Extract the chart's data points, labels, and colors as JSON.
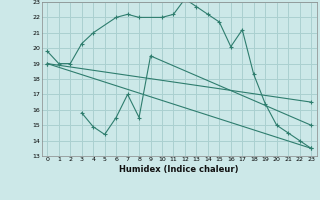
{
  "xlabel": "Humidex (Indice chaleur)",
  "background_color": "#cce8e8",
  "grid_color": "#aad0d0",
  "line_color": "#2e7d6e",
  "xlim": [
    -0.5,
    23.5
  ],
  "ylim": [
    13,
    23
  ],
  "yticks": [
    13,
    14,
    15,
    16,
    17,
    18,
    19,
    20,
    21,
    22,
    23
  ],
  "xticks": [
    0,
    1,
    2,
    3,
    4,
    5,
    6,
    7,
    8,
    9,
    10,
    11,
    12,
    13,
    14,
    15,
    16,
    17,
    18,
    19,
    20,
    21,
    22,
    23
  ],
  "line1_x": [
    0,
    1,
    2,
    3,
    4,
    6,
    7,
    8,
    10,
    11,
    12,
    13,
    14,
    15,
    16,
    17,
    18,
    19,
    20,
    21,
    22,
    23
  ],
  "line1_y": [
    19.8,
    19.0,
    19.0,
    20.3,
    21.0,
    22.0,
    22.2,
    22.0,
    22.0,
    22.2,
    23.2,
    22.7,
    22.2,
    21.7,
    20.1,
    21.2,
    18.3,
    16.4,
    15.0,
    14.5,
    14.0,
    13.5
  ],
  "line2_x": [
    0,
    23
  ],
  "line2_y": [
    19.0,
    16.5
  ],
  "line3_x": [
    3,
    4,
    5,
    6,
    7,
    8,
    9,
    23
  ],
  "line3_y": [
    15.8,
    14.9,
    14.4,
    15.5,
    17.0,
    15.5,
    19.5,
    15.0
  ],
  "line4_x": [
    0,
    23
  ],
  "line4_y": [
    19.0,
    13.5
  ]
}
